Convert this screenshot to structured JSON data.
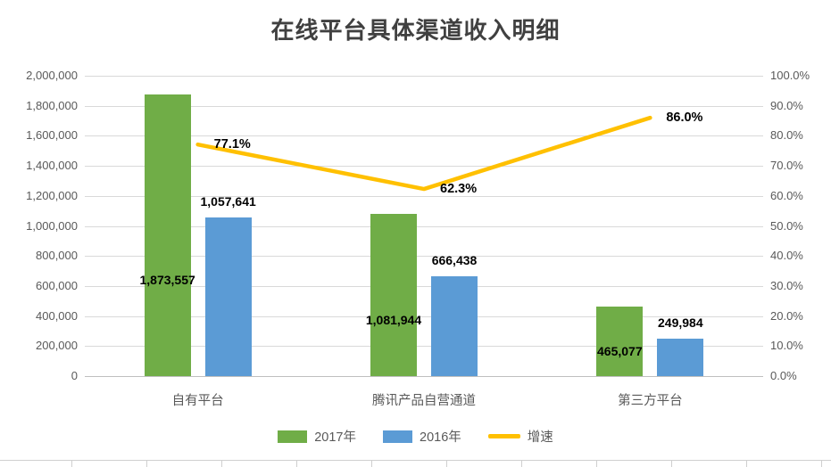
{
  "chart_data": {
    "type": "bar+line",
    "title": "在线平台具体渠道收入明细",
    "categories": [
      "自有平台",
      "腾讯产品自营通道",
      "第三方平台"
    ],
    "series": [
      {
        "key": "2017",
        "name": "2017年",
        "type": "bar",
        "color": "#70AD47",
        "axis": "left",
        "values": [
          1873557,
          1081944,
          465077
        ],
        "labels": [
          "1,873,557",
          "1,081,944",
          "465,077"
        ]
      },
      {
        "key": "2016",
        "name": "2016年",
        "type": "bar",
        "color": "#5B9BD5",
        "axis": "left",
        "values": [
          1057641,
          666438,
          249984
        ],
        "labels": [
          "1,057,641",
          "666,438",
          "249,984"
        ]
      },
      {
        "key": "growth",
        "name": "增速",
        "type": "line",
        "color": "#FFC000",
        "axis": "right",
        "values": [
          77.1,
          62.3,
          86.0
        ],
        "labels": [
          "77.1%",
          "62.3%",
          "86.0%"
        ]
      }
    ],
    "left_axis": {
      "min": 0,
      "max": 2000000,
      "step": 200000,
      "tick_labels": [
        "2,000,000",
        "1,800,000",
        "1,600,000",
        "1,400,000",
        "1,200,000",
        "1,000,000",
        "800,000",
        "600,000",
        "400,000",
        "200,000",
        "0"
      ]
    },
    "right_axis": {
      "min": 0,
      "max": 100,
      "step": 10,
      "tick_labels": [
        "100.0%",
        "90.0%",
        "80.0%",
        "70.0%",
        "60.0%",
        "50.0%",
        "40.0%",
        "30.0%",
        "20.0%",
        "10.0%",
        "0.0%"
      ]
    },
    "grid": true,
    "legend_position": "bottom"
  }
}
